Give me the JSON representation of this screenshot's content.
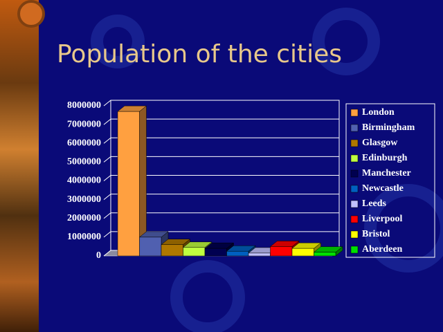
{
  "chart_data": {
    "type": "bar",
    "title": "Population of the cities",
    "series": [
      {
        "name": "London",
        "color": "#ffa040",
        "values": [
          7700000
        ]
      },
      {
        "name": "Birmingham",
        "color": "#5060b0",
        "values": [
          1000000
        ]
      },
      {
        "name": "Glasgow",
        "color": "#b07800",
        "values": [
          600000
        ]
      },
      {
        "name": "Edinburgh",
        "color": "#c0ff40",
        "values": [
          450000
        ]
      },
      {
        "name": "Manchester",
        "color": "#000050",
        "values": [
          400000
        ]
      },
      {
        "name": "Newcastle",
        "color": "#0060c0",
        "values": [
          250000
        ]
      },
      {
        "name": "Leeds",
        "color": "#c0c0ff",
        "values": [
          150000
        ]
      },
      {
        "name": "Liverpool",
        "color": "#ff0000",
        "values": [
          500000
        ]
      },
      {
        "name": "Bristol",
        "color": "#ffff00",
        "values": [
          400000
        ]
      },
      {
        "name": "Aberdeen",
        "color": "#00e000",
        "values": [
          200000
        ]
      }
    ],
    "ylim": [
      0,
      8000000
    ],
    "yticks": [
      0,
      1000000,
      2000000,
      3000000,
      4000000,
      5000000,
      6000000,
      7000000,
      8000000
    ],
    "grid": true
  }
}
